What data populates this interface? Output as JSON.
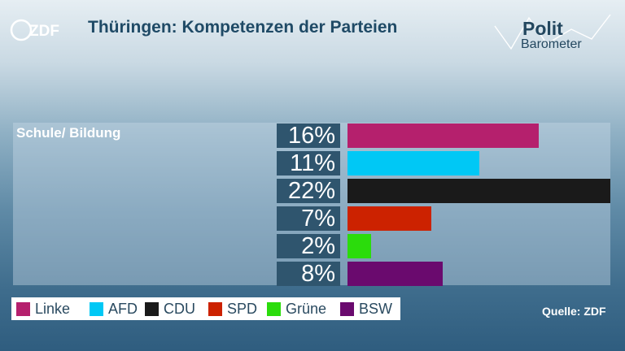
{
  "header": {
    "brand_logo_text": "ZDF",
    "title": "Thüringen: Kompetenzen der Parteien",
    "politbarometer_line1": "Polit",
    "politbarometer_line2": "Barometer"
  },
  "chart_data": {
    "type": "bar",
    "orientation": "horizontal",
    "title": "Thüringen: Kompetenzen der Parteien",
    "category": "Schule/ Bildung",
    "categories": [
      "Linke",
      "AFD",
      "CDU",
      "SPD",
      "Grüne",
      "BSW"
    ],
    "values": [
      16,
      11,
      22,
      7,
      2,
      8
    ],
    "value_labels": [
      "16%",
      "11%",
      "22%",
      "7%",
      "2%",
      "8%"
    ],
    "unit": "%",
    "xlim": [
      0,
      22
    ],
    "colors": [
      "#b5206d",
      "#00c8f5",
      "#1a1a1a",
      "#cc2200",
      "#2bdc0c",
      "#6a0a6e"
    ],
    "legend_position": "bottom-left"
  },
  "legend": [
    {
      "label": "Linke",
      "color": "#b5206d"
    },
    {
      "label": "AFD",
      "color": "#00c8f5"
    },
    {
      "label": "CDU",
      "color": "#1a1a1a"
    },
    {
      "label": "SPD",
      "color": "#cc2200"
    },
    {
      "label": "Grüne",
      "color": "#2bdc0c"
    },
    {
      "label": "BSW",
      "color": "#6a0a6e"
    }
  ],
  "source": "Quelle: ZDF"
}
